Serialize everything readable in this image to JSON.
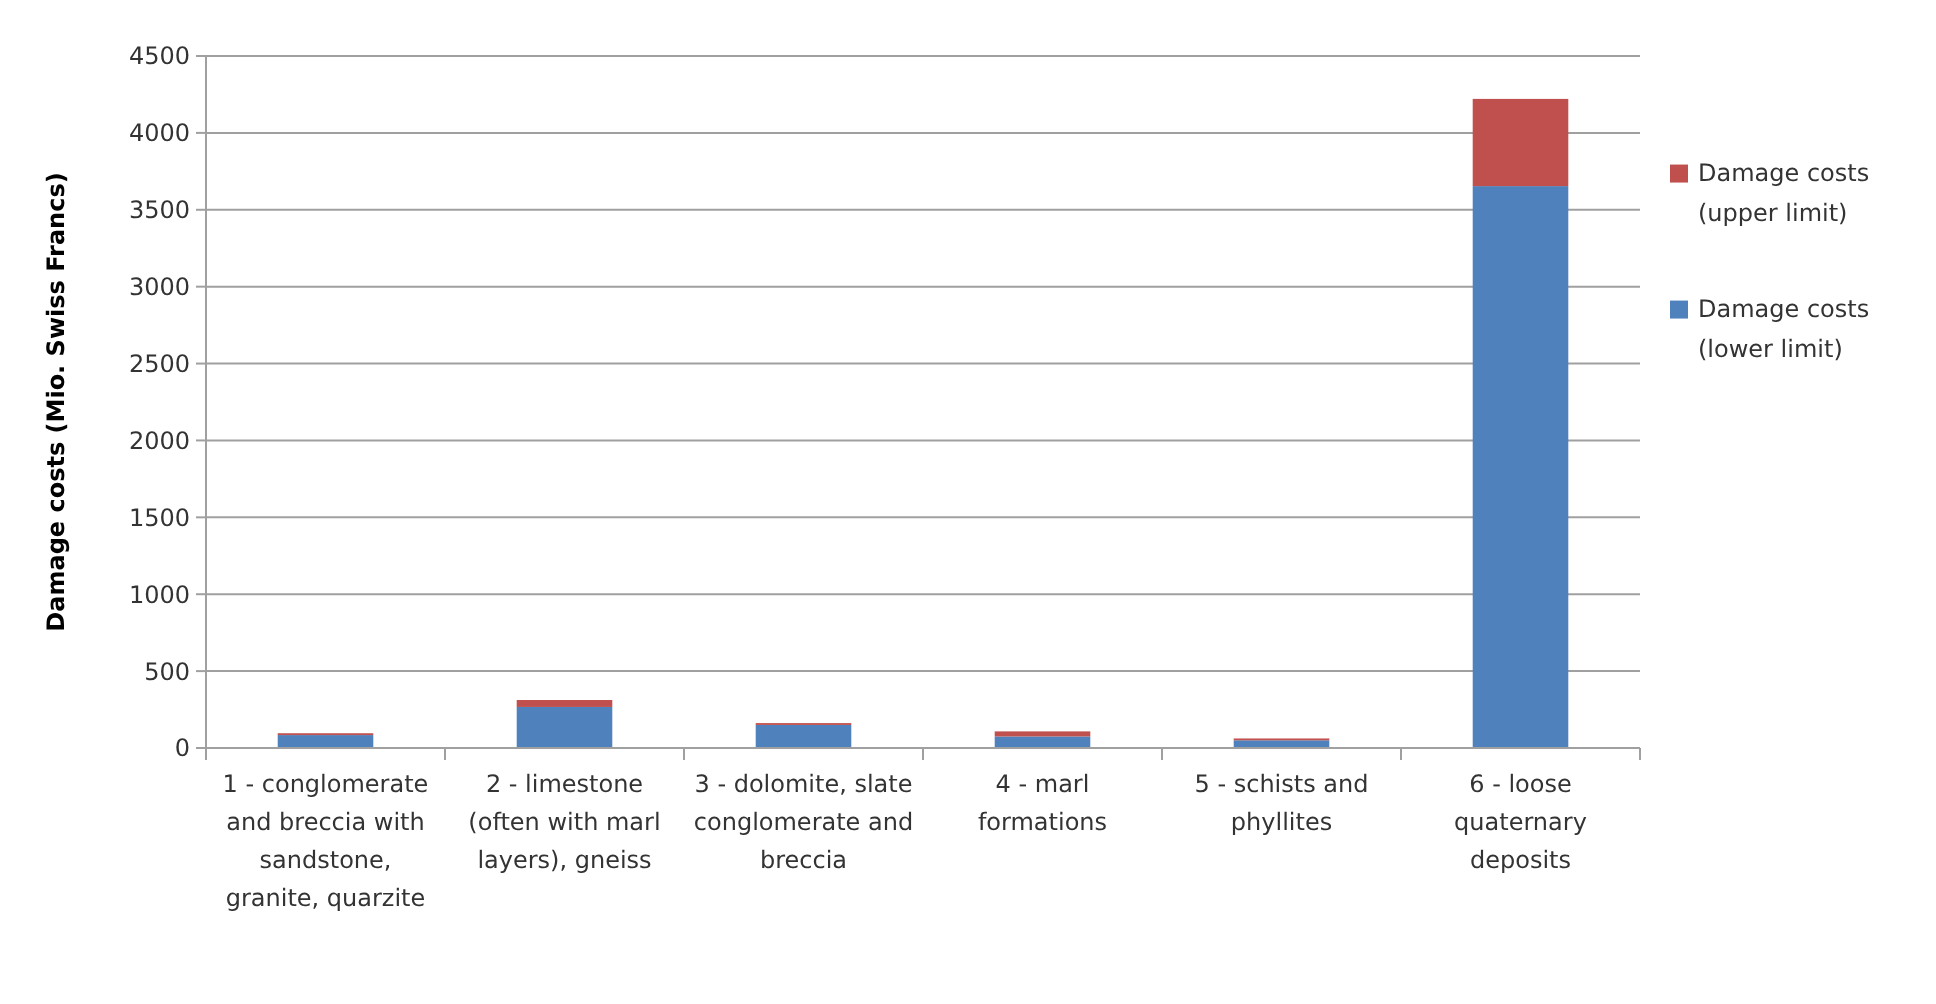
{
  "chart_data": {
    "type": "bar",
    "stacked": true,
    "ylabel": "Damage costs (Mio. Swiss Francs)",
    "categories": [
      "1 - conglomerate and breccia with sandstone, granite, quarzite",
      "2 - limestone (often with marl layers), gneiss",
      "3 - dolomite, slate conglomerate and breccia",
      "4 - marl formations",
      "5 - schists and phyllites",
      "6 - loose quaternary deposits"
    ],
    "series": [
      {
        "name": "Damage costs (lower limit)",
        "color": "#4f81bd",
        "values": [
          84,
          267,
          150,
          75,
          50,
          3654
        ]
      },
      {
        "name": "Damage costs (upper limit)",
        "color": "#c0504d",
        "values": [
          12,
          45,
          12,
          33,
          12,
          567
        ]
      }
    ],
    "ylim": [
      0,
      4500
    ],
    "yticks": [
      0,
      500,
      1000,
      1500,
      2000,
      2500,
      3000,
      3500,
      4000,
      4500
    ],
    "grid": "y",
    "legend": "right"
  }
}
